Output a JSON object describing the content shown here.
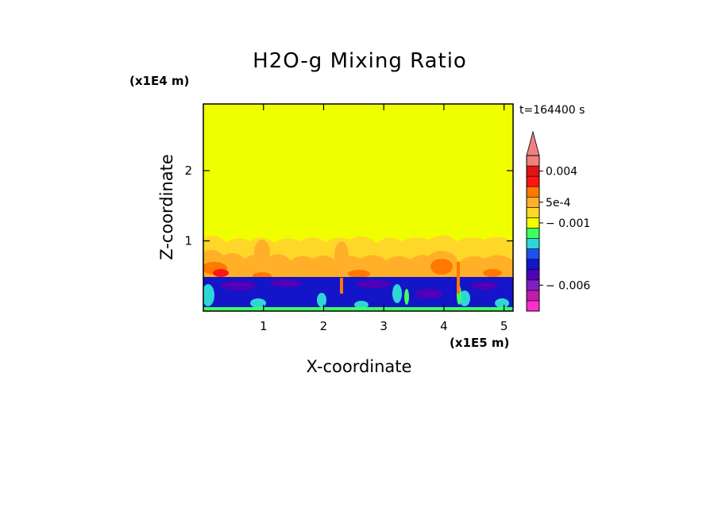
{
  "chart_data": {
    "type": "heatmap",
    "title": "H2O-g Mixing Ratio",
    "xlabel": "X-coordinate",
    "ylabel": "Z-coordinate",
    "x_unit": "(x1E5 m)",
    "y_unit": "(x1E4 m)",
    "time_label": "t=164400 s",
    "xlim": [
      0,
      5.15
    ],
    "ylim": [
      0,
      2.95
    ],
    "x_ticks": [
      "1",
      "2",
      "3",
      "4",
      "5"
    ],
    "x_tick_values": [
      1,
      2,
      3,
      4,
      5
    ],
    "y_ticks": [
      "1",
      "2"
    ],
    "y_tick_values": [
      1,
      2
    ],
    "colorbar": {
      "colors": [
        "#ff2fcf",
        "#c01ea8",
        "#8020c0",
        "#5000b8",
        "#1414c8",
        "#1e50f0",
        "#2fd6d6",
        "#40ff60",
        "#f0ff00",
        "#ffd728",
        "#ffb028",
        "#ff7800",
        "#ff1414",
        "#e01414",
        "#f08080",
        "#f08080"
      ],
      "labels": [
        {
          "text": "0.004",
          "band": 13
        },
        {
          "text": "5e-4",
          "band": 10
        },
        {
          "text": "− 0.001",
          "band": 8
        },
        {
          "text": "− 0.006",
          "band": 2
        }
      ]
    },
    "field": {
      "upper_region_color": "#f0ff00",
      "mixing_layer_top_z": 1.05,
      "inversion_z": 0.5,
      "mid_layer_color": "#ffd728",
      "lower_layer_color": "#1414c8"
    }
  }
}
